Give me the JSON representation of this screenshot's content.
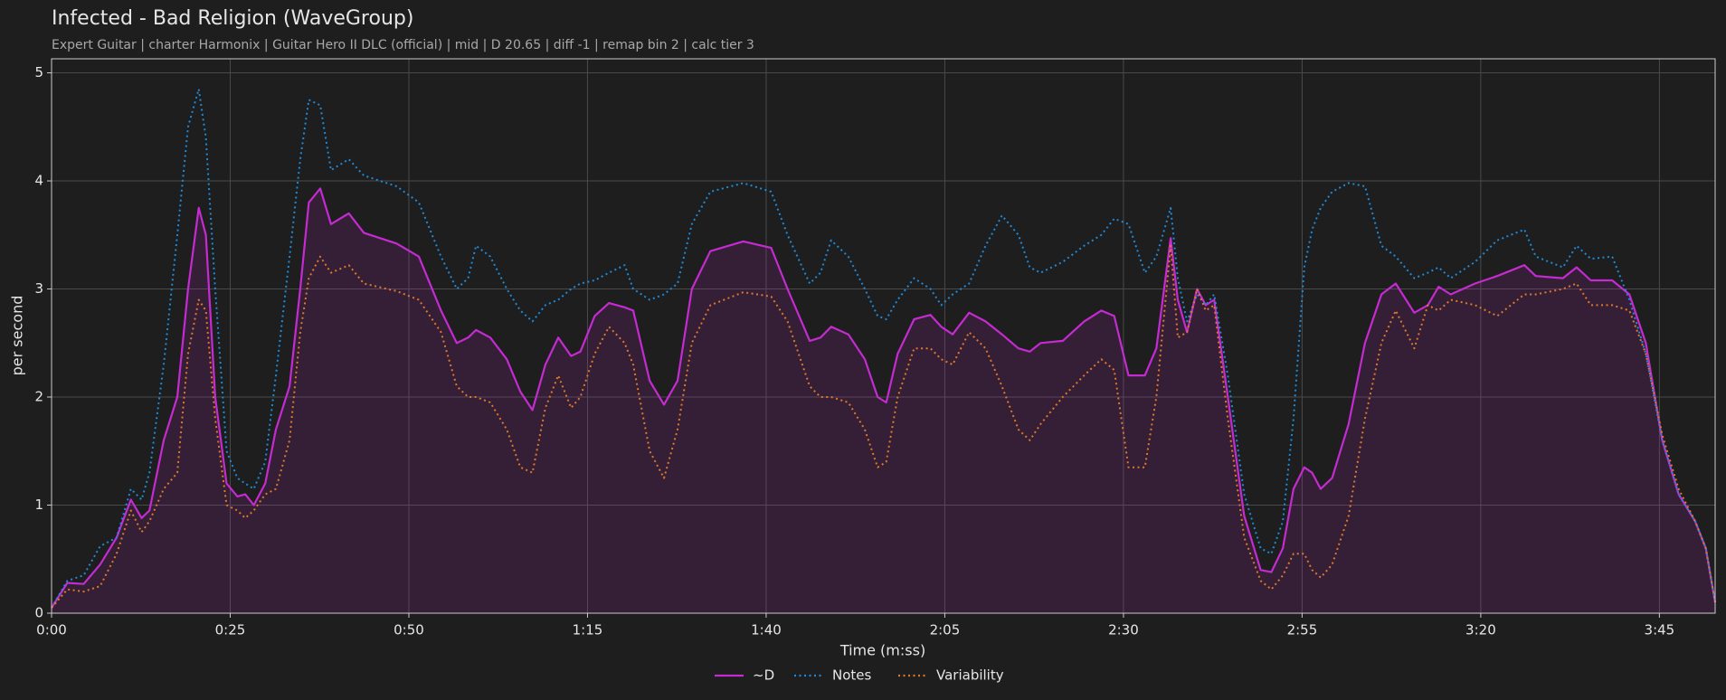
{
  "chart_data": {
    "type": "line",
    "title": "Infected - Bad Religion (WaveGroup)",
    "subtitle": "Expert Guitar  |  charter Harmonix  |  Guitar Hero II DLC (official)  |  mid  |  D 20.65  |  diff -1  |  remap bin 2  |  calc tier 3",
    "xlabel": "Time (m:ss)",
    "ylabel": "per second",
    "xlim": [
      0,
      232.8
    ],
    "ylim": [
      0,
      5.13
    ],
    "xticks": [
      {
        "value": 0,
        "label": "0:00"
      },
      {
        "value": 25,
        "label": "0:25"
      },
      {
        "value": 50,
        "label": "0:50"
      },
      {
        "value": 75,
        "label": "1:15"
      },
      {
        "value": 100,
        "label": "1:40"
      },
      {
        "value": 125,
        "label": "2:05"
      },
      {
        "value": 150,
        "label": "2:30"
      },
      {
        "value": 175,
        "label": "2:55"
      },
      {
        "value": 200,
        "label": "3:20"
      },
      {
        "value": 225,
        "label": "3:45"
      }
    ],
    "yticks": [
      0,
      1,
      2,
      3,
      4,
      5
    ],
    "grid": true,
    "legend": "bottom",
    "x": [
      0,
      2.2,
      4.5,
      6.8,
      9.1,
      11.1,
      12.6,
      13.7,
      15.7,
      17.6,
      19.1,
      20.6,
      21.6,
      22.9,
      24.5,
      26.0,
      27.1,
      28.3,
      29.9,
      31.4,
      33.3,
      34.8,
      36.0,
      37.6,
      39.1,
      41.6,
      43.7,
      48.3,
      51.4,
      54.5,
      56.7,
      58.3,
      59.4,
      61.4,
      63.7,
      65.6,
      67.3,
      69.1,
      70.9,
      72.7,
      74.0,
      76.0,
      78.0,
      80.2,
      81.4,
      83.7,
      85.7,
      87.6,
      89.6,
      92.2,
      96.8,
      100.7,
      103.0,
      106.1,
      107.6,
      109.1,
      111.5,
      113.8,
      115.6,
      116.8,
      118.4,
      120.7,
      123.0,
      124.5,
      126.1,
      128.4,
      130.7,
      133.0,
      135.3,
      136.9,
      138.4,
      141.5,
      144.5,
      146.9,
      148.7,
      150.7,
      153.0,
      154.6,
      156.6,
      157.6,
      158.9,
      160.3,
      161.5,
      162.7,
      164.6,
      166.9,
      169.2,
      170.7,
      172.3,
      173.8,
      175.3,
      176.4,
      177.6,
      179.2,
      181.5,
      183.8,
      186.1,
      188.1,
      190.7,
      192.6,
      194.1,
      195.8,
      199.2,
      202.3,
      206.1,
      207.7,
      211.5,
      213.4,
      215.4,
      218.4,
      220.8,
      223.1,
      225.4,
      227.7,
      230.0,
      231.5,
      232.8
    ],
    "series": [
      {
        "name": "~D",
        "color": "#c42bd0",
        "style": "solid",
        "fill": true,
        "values": [
          0.05,
          0.28,
          0.27,
          0.45,
          0.7,
          1.05,
          0.88,
          0.95,
          1.6,
          2.0,
          3.0,
          3.75,
          3.5,
          2.0,
          1.2,
          1.08,
          1.1,
          1.0,
          1.2,
          1.7,
          2.1,
          3.0,
          3.8,
          3.93,
          3.6,
          3.7,
          3.52,
          3.42,
          3.3,
          2.8,
          2.5,
          2.55,
          2.62,
          2.55,
          2.35,
          2.05,
          1.88,
          2.3,
          2.55,
          2.38,
          2.42,
          2.75,
          2.87,
          2.83,
          2.8,
          2.15,
          1.93,
          2.15,
          3.0,
          3.35,
          3.44,
          3.38,
          3.0,
          2.52,
          2.55,
          2.65,
          2.58,
          2.35,
          2.0,
          1.95,
          2.4,
          2.72,
          2.76,
          2.65,
          2.58,
          2.78,
          2.7,
          2.58,
          2.45,
          2.42,
          2.5,
          2.52,
          2.7,
          2.8,
          2.75,
          2.2,
          2.2,
          2.45,
          3.47,
          2.9,
          2.6,
          3.0,
          2.85,
          2.9,
          2.0,
          0.9,
          0.4,
          0.38,
          0.6,
          1.15,
          1.35,
          1.3,
          1.15,
          1.25,
          1.75,
          2.5,
          2.95,
          3.05,
          2.78,
          2.85,
          3.02,
          2.95,
          3.05,
          3.12,
          3.22,
          3.12,
          3.1,
          3.2,
          3.08,
          3.08,
          2.95,
          2.5,
          1.6,
          1.1,
          0.85,
          0.6,
          0.1
        ]
      },
      {
        "name": "Notes",
        "color": "#1f8ad8",
        "style": "dotted",
        "values": [
          0.05,
          0.3,
          0.35,
          0.62,
          0.7,
          1.15,
          1.05,
          1.3,
          2.3,
          3.5,
          4.5,
          4.85,
          4.4,
          3.0,
          1.5,
          1.25,
          1.2,
          1.15,
          1.4,
          2.2,
          3.3,
          4.2,
          4.75,
          4.7,
          4.1,
          4.2,
          4.05,
          3.95,
          3.8,
          3.3,
          3.0,
          3.1,
          3.4,
          3.3,
          3.0,
          2.8,
          2.7,
          2.85,
          2.9,
          3.0,
          3.05,
          3.08,
          3.15,
          3.22,
          3.0,
          2.9,
          2.95,
          3.05,
          3.6,
          3.9,
          3.98,
          3.9,
          3.5,
          3.05,
          3.15,
          3.45,
          3.3,
          3.0,
          2.75,
          2.72,
          2.9,
          3.1,
          3.0,
          2.85,
          2.95,
          3.05,
          3.4,
          3.68,
          3.5,
          3.2,
          3.15,
          3.25,
          3.4,
          3.5,
          3.65,
          3.6,
          3.15,
          3.3,
          3.75,
          3.1,
          2.7,
          2.95,
          2.85,
          2.95,
          2.2,
          1.1,
          0.6,
          0.55,
          0.85,
          1.8,
          3.2,
          3.55,
          3.75,
          3.9,
          3.98,
          3.95,
          3.4,
          3.3,
          3.1,
          3.15,
          3.2,
          3.1,
          3.25,
          3.45,
          3.55,
          3.3,
          3.2,
          3.4,
          3.28,
          3.3,
          2.9,
          2.4,
          1.6,
          1.1,
          0.85,
          0.6,
          0.1
        ]
      },
      {
        "name": "Variability",
        "color": "#e0782a",
        "style": "dotted",
        "values": [
          0.05,
          0.22,
          0.2,
          0.25,
          0.55,
          0.95,
          0.75,
          0.85,
          1.15,
          1.3,
          2.4,
          2.9,
          2.8,
          1.8,
          1.0,
          0.95,
          0.88,
          0.95,
          1.1,
          1.15,
          1.6,
          2.6,
          3.1,
          3.3,
          3.15,
          3.22,
          3.05,
          2.98,
          2.9,
          2.6,
          2.1,
          2.0,
          2.0,
          1.95,
          1.7,
          1.35,
          1.3,
          1.9,
          2.2,
          1.9,
          2.0,
          2.4,
          2.65,
          2.5,
          2.3,
          1.5,
          1.25,
          1.7,
          2.5,
          2.85,
          2.97,
          2.93,
          2.7,
          2.1,
          2.0,
          2.0,
          1.95,
          1.7,
          1.35,
          1.4,
          2.0,
          2.45,
          2.45,
          2.35,
          2.3,
          2.6,
          2.45,
          2.1,
          1.7,
          1.6,
          1.75,
          2.0,
          2.2,
          2.35,
          2.25,
          1.35,
          1.35,
          2.0,
          3.4,
          2.55,
          2.6,
          3.0,
          2.8,
          2.85,
          1.8,
          0.7,
          0.3,
          0.22,
          0.35,
          0.55,
          0.55,
          0.4,
          0.33,
          0.45,
          0.9,
          1.8,
          2.5,
          2.8,
          2.45,
          2.85,
          2.8,
          2.9,
          2.85,
          2.75,
          2.95,
          2.95,
          3.0,
          3.05,
          2.85,
          2.85,
          2.8,
          2.4,
          1.65,
          1.15,
          0.85,
          0.6,
          0.1
        ]
      }
    ]
  }
}
